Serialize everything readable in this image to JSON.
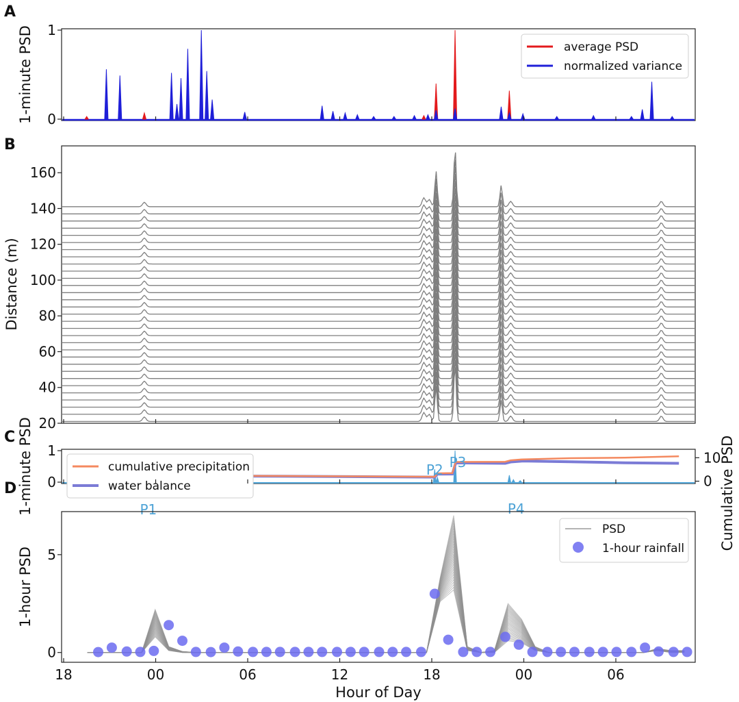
{
  "x_axis": {
    "label": "Hour of Day",
    "ticks": [
      "18",
      "00",
      "06",
      "12",
      "18",
      "00",
      "06"
    ]
  },
  "colors": {
    "average_psd": "#e31a1c",
    "normalized_variance": "#1f1fd8",
    "trace_gray": "#7f7f7f",
    "cumulative_precipitation": "#f4895f",
    "water_balance": "#7b7bd6",
    "psd_light_blue": "#4ea3d6",
    "rainfall_dot": "#6b6bf0"
  },
  "chart_data": [
    {
      "panel": "A",
      "type": "line",
      "ylabel": "1-minute PSD",
      "ylim": [
        0,
        1
      ],
      "yticks": [
        "0",
        "1"
      ],
      "legend": {
        "placement": "top-right",
        "entries": [
          "average PSD",
          "normalized variance"
        ]
      },
      "series": [
        {
          "name": "average PSD",
          "color": "#e31a1c",
          "spikes": [
            {
              "hour": 0.35,
              "value": 0.03
            },
            {
              "hour": 4.6,
              "value": 0.07
            },
            {
              "hour": 25.2,
              "value": 0.04
            },
            {
              "hour": 26.1,
              "value": 0.4
            },
            {
              "hour": 27.5,
              "value": 1.0
            },
            {
              "hour": 31.5,
              "value": 0.32
            }
          ]
        },
        {
          "name": "normalized variance",
          "color": "#1f1fd8",
          "spikes": [
            {
              "hour": 1.8,
              "value": 0.56
            },
            {
              "hour": 2.8,
              "value": 0.49
            },
            {
              "hour": 6.6,
              "value": 0.52
            },
            {
              "hour": 7.3,
              "value": 0.46
            },
            {
              "hour": 7.8,
              "value": 0.79
            },
            {
              "hour": 8.8,
              "value": 1.0
            },
            {
              "hour": 9.2,
              "value": 0.54
            },
            {
              "hour": 9.6,
              "value": 0.22
            },
            {
              "hour": 7.0,
              "value": 0.17
            },
            {
              "hour": 12.0,
              "value": 0.08
            },
            {
              "hour": 17.7,
              "value": 0.15
            },
            {
              "hour": 18.5,
              "value": 0.09
            },
            {
              "hour": 19.4,
              "value": 0.07
            },
            {
              "hour": 20.3,
              "value": 0.05
            },
            {
              "hour": 21.5,
              "value": 0.03
            },
            {
              "hour": 23.0,
              "value": 0.03
            },
            {
              "hour": 24.5,
              "value": 0.04
            },
            {
              "hour": 25.5,
              "value": 0.05
            },
            {
              "hour": 26.1,
              "value": 0.1
            },
            {
              "hour": 27.5,
              "value": 0.12
            },
            {
              "hour": 30.9,
              "value": 0.14
            },
            {
              "hour": 31.5,
              "value": 0.07
            },
            {
              "hour": 32.5,
              "value": 0.06
            },
            {
              "hour": 35.0,
              "value": 0.03
            },
            {
              "hour": 37.7,
              "value": 0.04
            },
            {
              "hour": 40.5,
              "value": 0.03
            },
            {
              "hour": 41.3,
              "value": 0.11
            },
            {
              "hour": 42.0,
              "value": 0.42
            },
            {
              "hour": 43.5,
              "value": 0.03
            }
          ]
        }
      ]
    },
    {
      "panel": "B",
      "type": "line",
      "ylabel": "Distance (m)",
      "ylim": [
        20,
        175
      ],
      "yticks": [
        "20",
        "40",
        "60",
        "80",
        "100",
        "120",
        "140",
        "160"
      ],
      "trace_offsets_m": [
        21,
        25,
        29,
        33,
        37,
        41,
        45,
        49,
        53,
        57,
        61,
        65,
        69,
        73,
        77,
        81,
        85,
        89,
        93,
        97,
        101,
        105,
        109,
        113,
        117,
        121,
        125,
        129,
        133,
        137,
        141
      ],
      "events": [
        {
          "hour": 4.6,
          "amplitude_m": 2.5
        },
        {
          "hour": 25.2,
          "amplitude_m": 5
        },
        {
          "hour": 25.6,
          "amplitude_m": 4
        },
        {
          "hour": 26.1,
          "amplitude_m": 20
        },
        {
          "hour": 27.5,
          "amplitude_m": 33
        },
        {
          "hour": 30.9,
          "amplitude_m": 12
        },
        {
          "hour": 31.6,
          "amplitude_m": 3
        },
        {
          "hour": 42.7,
          "amplitude_m": 3
        }
      ]
    },
    {
      "panel": "C",
      "type": "line",
      "ylabel": "1-minute PSD",
      "ylabel_right": "Cumulative PSD",
      "ylim": [
        0,
        1
      ],
      "ylim_right": [
        -1,
        13.6
      ],
      "yticks": [
        "0",
        "1"
      ],
      "yticks_right": [
        "0",
        "10"
      ],
      "legend": {
        "placement": "top-left",
        "entries": [
          "cumulative precipitation",
          "water balance"
        ]
      },
      "peak_labels": [
        {
          "label": "P1",
          "hour": 4.9
        },
        {
          "label": "P2",
          "hour": 26.0
        },
        {
          "label": "P3",
          "hour": 27.7
        },
        {
          "label": "P4",
          "hour": 32.0
        }
      ],
      "series": [
        {
          "name": "cumulative precipitation",
          "color": "#f4895f",
          "points": [
            [
              0,
              0.75
            ],
            [
              4.5,
              0.8
            ],
            [
              5.5,
              2.35
            ],
            [
              15,
              2.2
            ],
            [
              26.0,
              1.9
            ],
            [
              26.2,
              3.35
            ],
            [
              27.3,
              3.45
            ],
            [
              27.55,
              8.2
            ],
            [
              31.2,
              8.3
            ],
            [
              31.6,
              8.9
            ],
            [
              32.5,
              9.3
            ],
            [
              36,
              9.8
            ],
            [
              40,
              10.0
            ],
            [
              44.0,
              10.6
            ]
          ]
        },
        {
          "name": "water balance",
          "color": "#7b7bd6",
          "points": [
            [
              0,
              0.7
            ],
            [
              4.5,
              0.75
            ],
            [
              5.5,
              2.3
            ],
            [
              15,
              2.1
            ],
            [
              26.0,
              1.75
            ],
            [
              26.2,
              3.0
            ],
            [
              27.3,
              3.05
            ],
            [
              27.55,
              7.8
            ],
            [
              31.2,
              7.6
            ],
            [
              31.6,
              8.2
            ],
            [
              32.5,
              8.6
            ],
            [
              36,
              8.3
            ],
            [
              40,
              7.85
            ],
            [
              44.0,
              7.6
            ]
          ]
        },
        {
          "name": "1-minute PSD",
          "color": "#4ea3d6",
          "spikes": [
            {
              "hour": 4.6,
              "value": 0.07
            },
            {
              "hour": 5.0,
              "value": 0.04
            },
            {
              "hour": 26.0,
              "value": 0.41
            },
            {
              "hour": 26.2,
              "value": 0.15
            },
            {
              "hour": 27.5,
              "value": 1.0
            },
            {
              "hour": 31.5,
              "value": 0.22
            },
            {
              "hour": 31.8,
              "value": 0.08
            },
            {
              "hour": 32.3,
              "value": 0.05
            }
          ]
        }
      ]
    },
    {
      "panel": "D",
      "type": "line",
      "ylabel": "1-hour PSD",
      "ylim": [
        -0.5,
        7.2
      ],
      "yticks": [
        "0",
        "5"
      ],
      "legend": {
        "placement": "top-right",
        "entries": [
          "PSD",
          "1-hour rainfall"
        ]
      },
      "psd_profile": {
        "hours": [
          0,
          1,
          2,
          3,
          4,
          5,
          6,
          7,
          8,
          9,
          10,
          11,
          12,
          13,
          14,
          15,
          16,
          17,
          18,
          19,
          20,
          21,
          22,
          23,
          24,
          25,
          26,
          27,
          28,
          29,
          30,
          31,
          32,
          33,
          34,
          35,
          36,
          37,
          38,
          39,
          40,
          41,
          42,
          43,
          44
        ],
        "max_values": [
          0,
          0,
          0,
          0,
          0,
          2.2,
          0.3,
          0.05,
          0,
          0,
          0,
          0,
          0,
          0,
          0,
          0,
          0,
          0,
          0,
          0,
          0,
          0,
          0,
          0,
          0,
          0,
          3.8,
          7.0,
          0.3,
          0,
          0.1,
          2.5,
          1.7,
          0.3,
          0,
          0,
          0,
          0,
          0,
          0,
          0,
          0,
          0.2,
          0.1,
          0.1
        ],
        "min_values": [
          0,
          0,
          0,
          0,
          0,
          0.8,
          0.1,
          0,
          0,
          0,
          0,
          0,
          0,
          0,
          0,
          0,
          0,
          0,
          0,
          0,
          0,
          0,
          0,
          0,
          0,
          0,
          2.6,
          3.2,
          0.1,
          0,
          0,
          0.6,
          0.5,
          0.1,
          0,
          0,
          0,
          0,
          0,
          0,
          0,
          0,
          0.1,
          0,
          0
        ],
        "trace_count": 30
      },
      "rainfall": {
        "hours": [
          1.2,
          2.2,
          3.3,
          4.3,
          5.3,
          6.4,
          7.4,
          8.4,
          9.5,
          10.5,
          11.5,
          12.6,
          13.6,
          14.6,
          15.7,
          16.7,
          17.7,
          18.8,
          19.8,
          20.8,
          21.9,
          22.9,
          23.9,
          25.0,
          26.0,
          27.0,
          28.1,
          29.1,
          30.1,
          31.2,
          32.2,
          33.2,
          34.3,
          35.3,
          36.3,
          37.4,
          38.4,
          39.4,
          40.5,
          41.5,
          42.5,
          43.6,
          44.6
        ],
        "values": [
          0.02,
          0.25,
          0.05,
          0.03,
          0.08,
          1.4,
          0.6,
          0.03,
          0.02,
          0.25,
          0.05,
          0.03,
          0.03,
          0.03,
          0.03,
          0.03,
          0.03,
          0.03,
          0.03,
          0.03,
          0.03,
          0.03,
          0.03,
          0.03,
          3.0,
          0.65,
          0.03,
          0.03,
          0.03,
          0.8,
          0.4,
          0.03,
          0.03,
          0.03,
          0.03,
          0.03,
          0.03,
          0.03,
          0.03,
          0.25,
          0.05,
          0.03,
          0.03
        ]
      }
    }
  ]
}
